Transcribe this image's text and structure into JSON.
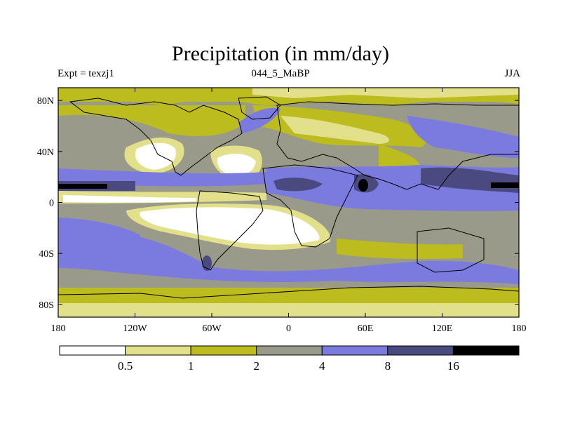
{
  "header": {
    "title": "Precipitation (in mm/day)",
    "left": "Expt = texzj1",
    "center": "044_5_MaBP",
    "right": "JJA"
  },
  "axes": {
    "x_ticks": [
      {
        "value": -180,
        "label": "180"
      },
      {
        "value": -120,
        "label": "120W"
      },
      {
        "value": -60,
        "label": "60W"
      },
      {
        "value": 0,
        "label": "0"
      },
      {
        "value": 60,
        "label": "60E"
      },
      {
        "value": 120,
        "label": "120E"
      },
      {
        "value": 180,
        "label": "180"
      }
    ],
    "y_ticks": [
      {
        "value": 80,
        "label": "80N"
      },
      {
        "value": 40,
        "label": "40N"
      },
      {
        "value": 0,
        "label": "0"
      },
      {
        "value": -40,
        "label": "40S"
      },
      {
        "value": -80,
        "label": "80S"
      }
    ],
    "lon_range": [
      -180,
      180
    ],
    "lat_range": [
      -90,
      90
    ]
  },
  "colorbar": {
    "levels": [
      "0.5",
      "1",
      "2",
      "4",
      "8",
      "16"
    ],
    "colors": [
      "#ffffff",
      "#e2e08a",
      "#bcbc1e",
      "#9a9a8a",
      "#7b7bdf",
      "#4a4a80",
      "#000000"
    ]
  }
}
